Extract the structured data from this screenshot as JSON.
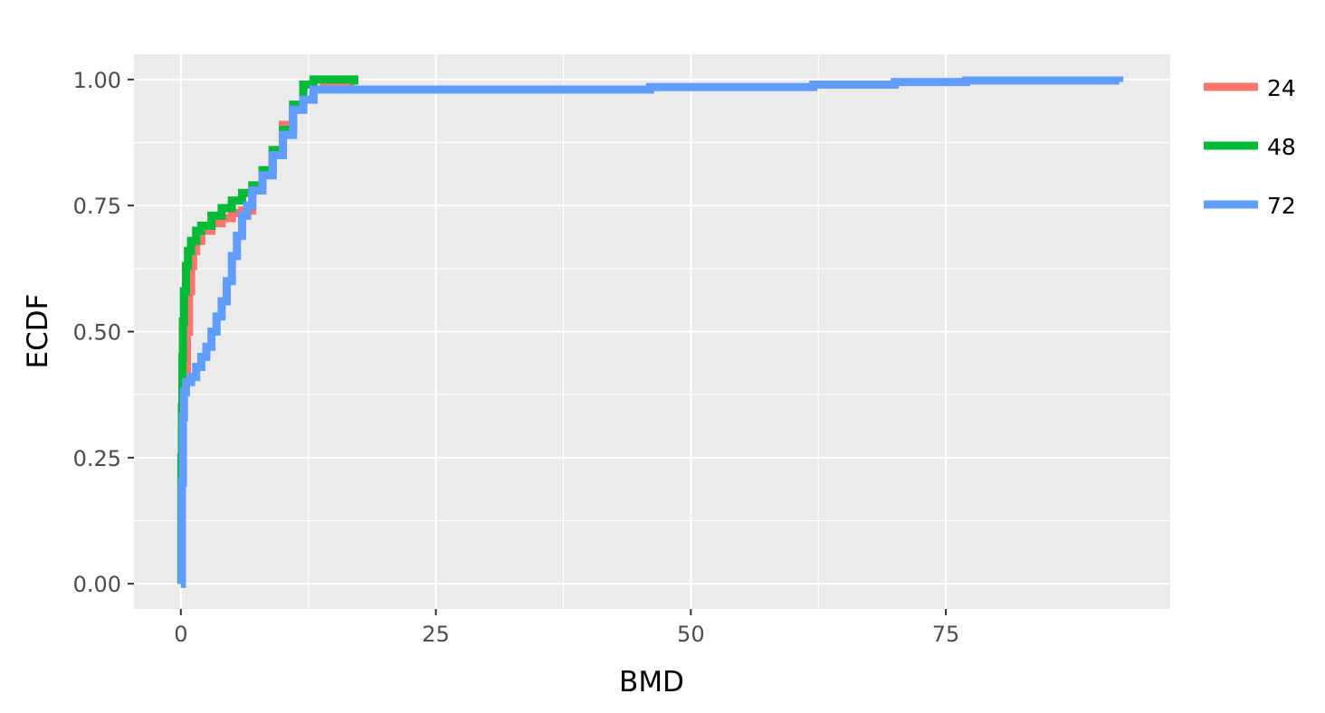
{
  "chart_data": {
    "type": "line",
    "subtype": "ecdf-step",
    "title": "",
    "xlabel": "BMD",
    "ylabel": "ECDF",
    "xlim": [
      -4.6,
      97
    ],
    "ylim": [
      -0.05,
      1.05
    ],
    "xticks": [
      0,
      25,
      50,
      75
    ],
    "xtick_labels": [
      "0",
      "25",
      "50",
      "75"
    ],
    "yticks": [
      0,
      0.25,
      0.5,
      0.75,
      1.0
    ],
    "ytick_labels": [
      "0.00",
      "0.25",
      "0.50",
      "0.75",
      "1.00"
    ],
    "grid": true,
    "legend_position": "right",
    "colors": {
      "panel_background": "#EBEBEB",
      "grid": "#FFFFFF",
      "tick_text": "#4D4D4D"
    },
    "series": [
      {
        "name": "24",
        "color": "#F8766D",
        "x": [
          0,
          0.05,
          0.1,
          0.15,
          0.2,
          0.3,
          0.4,
          0.6,
          0.8,
          1.0,
          1.2,
          1.5,
          2.0,
          3.0,
          4.0,
          5.0,
          6.0,
          7.0,
          8.0,
          9.0,
          10.0,
          11.0,
          12.0,
          13.0,
          14.0,
          15.0,
          16.0,
          17.0
        ],
        "y": [
          0.0,
          0.2,
          0.3,
          0.35,
          0.38,
          0.4,
          0.42,
          0.5,
          0.58,
          0.63,
          0.66,
          0.68,
          0.7,
          0.715,
          0.725,
          0.735,
          0.74,
          0.78,
          0.82,
          0.86,
          0.91,
          0.94,
          0.96,
          0.98,
          0.985,
          0.985,
          0.985,
          0.985
        ]
      },
      {
        "name": "48",
        "color": "#00BA38",
        "x": [
          0,
          0.05,
          0.1,
          0.15,
          0.2,
          0.3,
          0.5,
          0.7,
          1.0,
          1.5,
          2.0,
          3.0,
          4.0,
          5.0,
          6.0,
          7.0,
          8.0,
          9.0,
          10.0,
          11.0,
          12.0,
          13.0,
          14.0,
          15.0,
          16.0,
          17.0
        ],
        "y": [
          0.0,
          0.25,
          0.35,
          0.45,
          0.52,
          0.58,
          0.63,
          0.66,
          0.68,
          0.7,
          0.71,
          0.73,
          0.745,
          0.76,
          0.775,
          0.79,
          0.82,
          0.86,
          0.9,
          0.95,
          0.99,
          1.0,
          1.0,
          1.0,
          1.0,
          0.99
        ]
      },
      {
        "name": "72",
        "color": "#619CFF",
        "x": [
          0,
          0.1,
          0.2,
          0.3,
          0.5,
          1.0,
          1.5,
          2.0,
          2.5,
          3.0,
          3.5,
          4.0,
          4.5,
          5.0,
          5.5,
          6.0,
          6.5,
          7.0,
          8.0,
          9.0,
          10.0,
          11.0,
          12.0,
          13.0,
          14.0,
          20.0,
          30.0,
          40.0,
          46.0,
          50.0,
          60.0,
          62.0,
          66.0,
          70.0,
          77.0,
          85.0,
          92.0
        ],
        "y": [
          0.0,
          0.2,
          0.33,
          0.38,
          0.4,
          0.41,
          0.43,
          0.45,
          0.47,
          0.5,
          0.53,
          0.56,
          0.6,
          0.65,
          0.69,
          0.73,
          0.75,
          0.78,
          0.81,
          0.85,
          0.89,
          0.94,
          0.96,
          0.98,
          0.98,
          0.98,
          0.98,
          0.98,
          0.985,
          0.985,
          0.985,
          0.99,
          0.99,
          0.995,
          0.998,
          0.998,
          0.995
        ]
      }
    ]
  }
}
